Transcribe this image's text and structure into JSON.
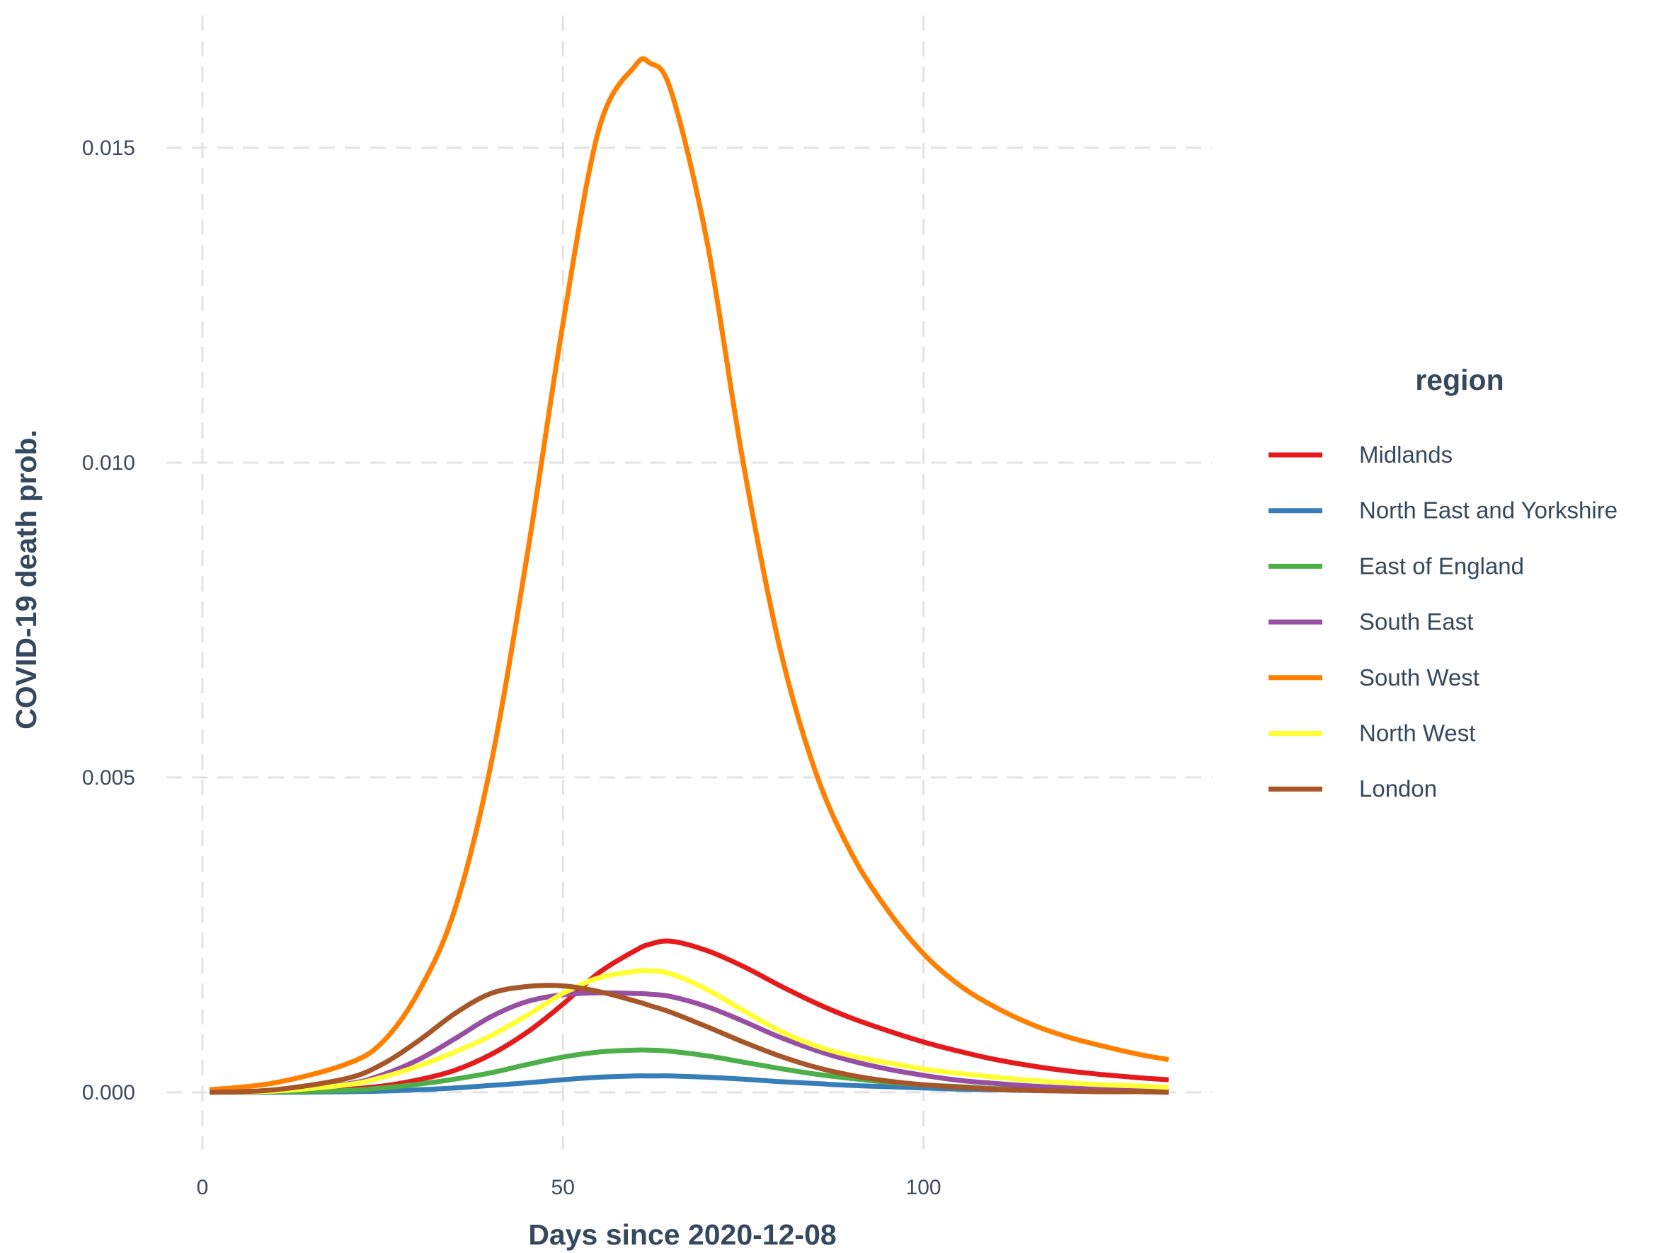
{
  "chart_data": {
    "type": "line",
    "title": "",
    "xlabel": "Days since 2020-12-08",
    "ylabel": "COVID-19 death prob.",
    "xlim": [
      -5,
      140
    ],
    "ylim": [
      -0.0009,
      0.0171
    ],
    "x_ticks": [
      0,
      50,
      100
    ],
    "x_tick_labels": [
      "0",
      "50",
      "100"
    ],
    "y_ticks": [
      0,
      0.005,
      0.01,
      0.015
    ],
    "y_tick_labels": [
      "0.000",
      "0.005",
      "0.010",
      "0.015"
    ],
    "grid": true,
    "legend_title": "region",
    "legend_position": "right",
    "x": [
      1,
      10,
      20,
      25,
      30,
      35,
      40,
      45,
      50,
      55,
      60,
      62,
      65,
      70,
      75,
      80,
      85,
      90,
      95,
      100,
      105,
      110,
      115,
      120,
      125,
      130,
      134
    ],
    "series": [
      {
        "name": "Midlands",
        "color": "#e41a1c",
        "values": [
          0.0,
          1e-05,
          5e-05,
          0.0001,
          0.0002,
          0.00035,
          0.0006,
          0.00095,
          0.0014,
          0.0019,
          0.00225,
          0.00235,
          0.0024,
          0.00225,
          0.002,
          0.0017,
          0.00142,
          0.00118,
          0.00098,
          0.0008,
          0.00065,
          0.00052,
          0.00042,
          0.00034,
          0.00028,
          0.00023,
          0.0002
        ]
      },
      {
        "name": "North East and Yorkshire",
        "color": "#377eb8",
        "values": [
          0.0,
          0.0,
          1e-05,
          2e-05,
          4e-05,
          7e-05,
          0.00011,
          0.00015,
          0.0002,
          0.00024,
          0.00026,
          0.00026,
          0.00026,
          0.00024,
          0.00021,
          0.00017,
          0.00014,
          0.00011,
          9e-05,
          7e-05,
          5e-05,
          4e-05,
          3e-05,
          2e-05,
          2e-05,
          1e-05,
          1e-05
        ]
      },
      {
        "name": "East of England",
        "color": "#4daf4a",
        "values": [
          0.0,
          1e-05,
          3e-05,
          7e-05,
          0.00013,
          0.00021,
          0.00031,
          0.00044,
          0.00056,
          0.00064,
          0.00067,
          0.00067,
          0.00065,
          0.00058,
          0.00048,
          0.00038,
          0.00029,
          0.00022,
          0.00016,
          0.00012,
          9e-05,
          6e-05,
          5e-05,
          3e-05,
          2e-05,
          2e-05,
          1e-05
        ]
      },
      {
        "name": "South East",
        "color": "#984ea3",
        "values": [
          0.0,
          2e-05,
          0.00013,
          0.00028,
          0.00052,
          0.00085,
          0.0012,
          0.00144,
          0.00155,
          0.00158,
          0.00157,
          0.00156,
          0.00152,
          0.00136,
          0.00113,
          0.00088,
          0.00067,
          0.0005,
          0.00037,
          0.00027,
          0.00019,
          0.00014,
          0.0001,
          7e-05,
          5e-05,
          4e-05,
          3e-05
        ]
      },
      {
        "name": "South West",
        "color": "#ff7f00",
        "values": [
          4e-05,
          0.00015,
          0.00045,
          0.0008,
          0.0016,
          0.0029,
          0.0052,
          0.0085,
          0.0122,
          0.0153,
          0.0163,
          0.01635,
          0.0159,
          0.0135,
          0.01,
          0.0071,
          0.0051,
          0.0038,
          0.0029,
          0.0022,
          0.0017,
          0.00135,
          0.00108,
          0.00088,
          0.00073,
          0.0006,
          0.00052
        ]
      },
      {
        "name": "North West",
        "color": "#ffff33",
        "values": [
          0.0,
          2e-05,
          0.00012,
          0.00024,
          0.00042,
          0.00064,
          0.0009,
          0.00122,
          0.00157,
          0.00182,
          0.00192,
          0.00193,
          0.00188,
          0.00163,
          0.0013,
          0.00098,
          0.00074,
          0.00058,
          0.00047,
          0.00037,
          0.0003,
          0.00024,
          0.00019,
          0.00015,
          0.00012,
          0.0001,
          8e-05
        ]
      },
      {
        "name": "London",
        "color": "#a65628",
        "values": [
          0.0,
          4e-05,
          0.00022,
          0.00045,
          0.00082,
          0.00125,
          0.00157,
          0.00168,
          0.00169,
          0.0016,
          0.00145,
          0.00138,
          0.00127,
          0.00104,
          0.0008,
          0.00058,
          0.0004,
          0.00027,
          0.00018,
          0.00012,
          8e-05,
          5e-05,
          3e-05,
          2e-05,
          1e-05,
          1e-05,
          0.0
        ]
      }
    ]
  }
}
